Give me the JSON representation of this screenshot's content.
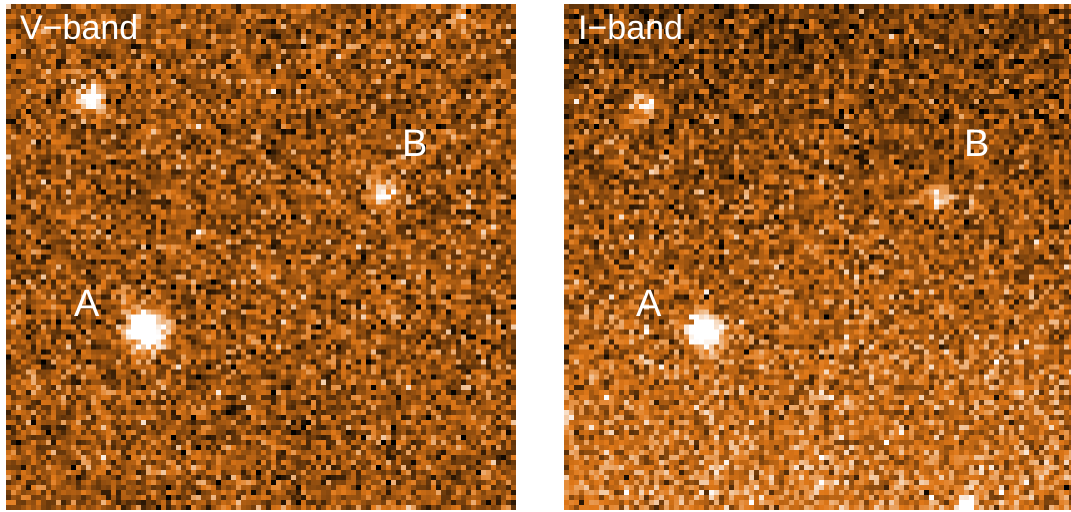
{
  "panels": [
    {
      "title": "V−band",
      "markers": [
        "A",
        "B"
      ]
    },
    {
      "title": "I−band",
      "markers": [
        "A",
        "B"
      ]
    }
  ],
  "colormap": {
    "dark": "#000000",
    "mid": "#e07818",
    "bright": "#ffffff"
  }
}
